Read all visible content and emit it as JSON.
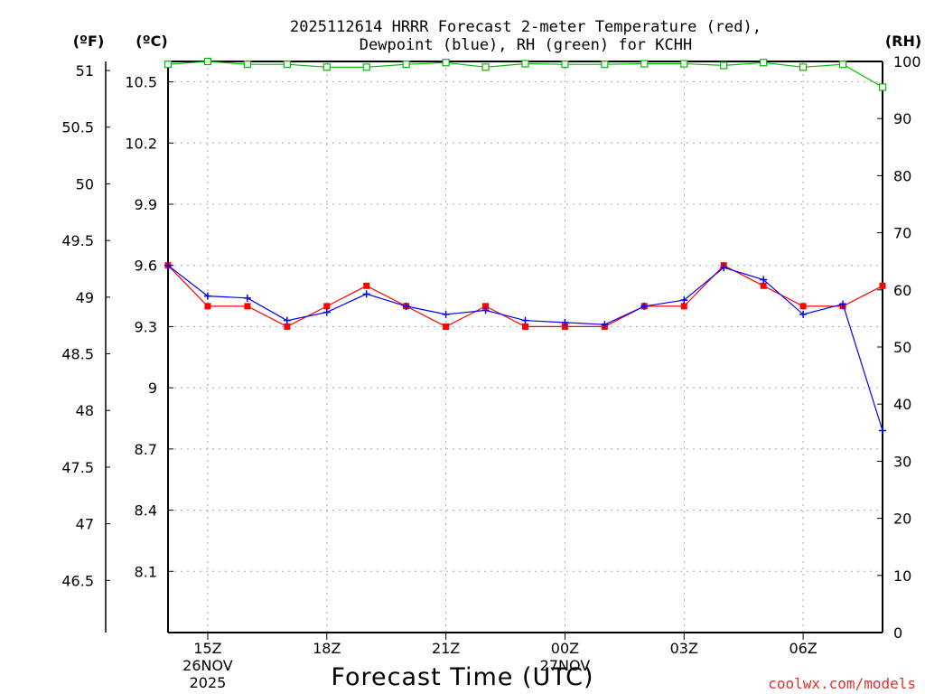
{
  "chart_data": {
    "type": "line",
    "title_line1": "2025112614 HRRR Forecast 2-meter Temperature (red),",
    "title_line2": "Dewpoint (blue), RH (green) for KCHH",
    "xlabel": "Forecast Time (UTC)",
    "credit": "coolwx.com/models",
    "unit_labels": {
      "fahrenheit": "(ºF)",
      "celsius": "(ºC)",
      "rh": "(RH)"
    },
    "axes": {
      "celsius": {
        "range": [
          7.8,
          10.6
        ],
        "ticks": [
          "8.1",
          "8.4",
          "8.7",
          "9",
          "9.3",
          "9.6",
          "9.9",
          "10.2",
          "10.5"
        ]
      },
      "fahrenheit": {
        "range": [
          46.04,
          51.08
        ],
        "ticks": [
          "46.5",
          "47",
          "47.5",
          "48",
          "48.5",
          "49",
          "49.5",
          "50",
          "50.5",
          "51"
        ]
      },
      "rh": {
        "range": [
          0,
          100
        ],
        "ticks": [
          "0",
          "10",
          "20",
          "30",
          "40",
          "50",
          "60",
          "70",
          "80",
          "90",
          "100"
        ]
      }
    },
    "x_range_hours": [
      14,
      32
    ],
    "x_ticks": [
      {
        "hour": 15,
        "label": "15Z",
        "date_line1": "26NOV",
        "date_line2": "2025"
      },
      {
        "hour": 18,
        "label": "18Z",
        "date_line1": "",
        "date_line2": ""
      },
      {
        "hour": 21,
        "label": "21Z",
        "date_line1": "",
        "date_line2": ""
      },
      {
        "hour": 24,
        "label": "00Z",
        "date_line1": "27NOV",
        "date_line2": ""
      },
      {
        "hour": 27,
        "label": "03Z",
        "date_line1": "",
        "date_line2": ""
      },
      {
        "hour": 30,
        "label": "06Z",
        "date_line1": "",
        "date_line2": ""
      }
    ],
    "x": [
      14,
      15,
      16,
      17,
      18,
      19,
      20,
      21,
      22,
      23,
      24,
      25,
      26,
      27,
      28,
      29,
      30,
      31,
      32
    ],
    "series": [
      {
        "name": "Temperature",
        "axis": "celsius",
        "color": "#ff0000",
        "marker": "square",
        "values": [
          9.6,
          9.4,
          9.4,
          9.3,
          9.4,
          9.5,
          9.4,
          9.3,
          9.4,
          9.3,
          9.3,
          9.3,
          9.4,
          9.4,
          9.6,
          9.5,
          9.4,
          9.4,
          9.5
        ]
      },
      {
        "name": "Dewpoint",
        "axis": "celsius",
        "color": "#0000ff",
        "marker": "plus",
        "values": [
          9.6,
          9.45,
          9.44,
          9.33,
          9.37,
          9.46,
          9.4,
          9.36,
          9.38,
          9.33,
          9.32,
          9.31,
          9.4,
          9.43,
          9.59,
          9.53,
          9.36,
          9.41,
          8.79
        ]
      },
      {
        "name": "RH",
        "axis": "rh",
        "color": "#00bb00",
        "marker": "hollow-square",
        "values": [
          99.5,
          100,
          99.5,
          99.5,
          99,
          99,
          99.5,
          99.8,
          99,
          99.6,
          99.5,
          99.5,
          99.6,
          99.6,
          99.3,
          99.8,
          99,
          99.5,
          95.5
        ]
      }
    ]
  }
}
